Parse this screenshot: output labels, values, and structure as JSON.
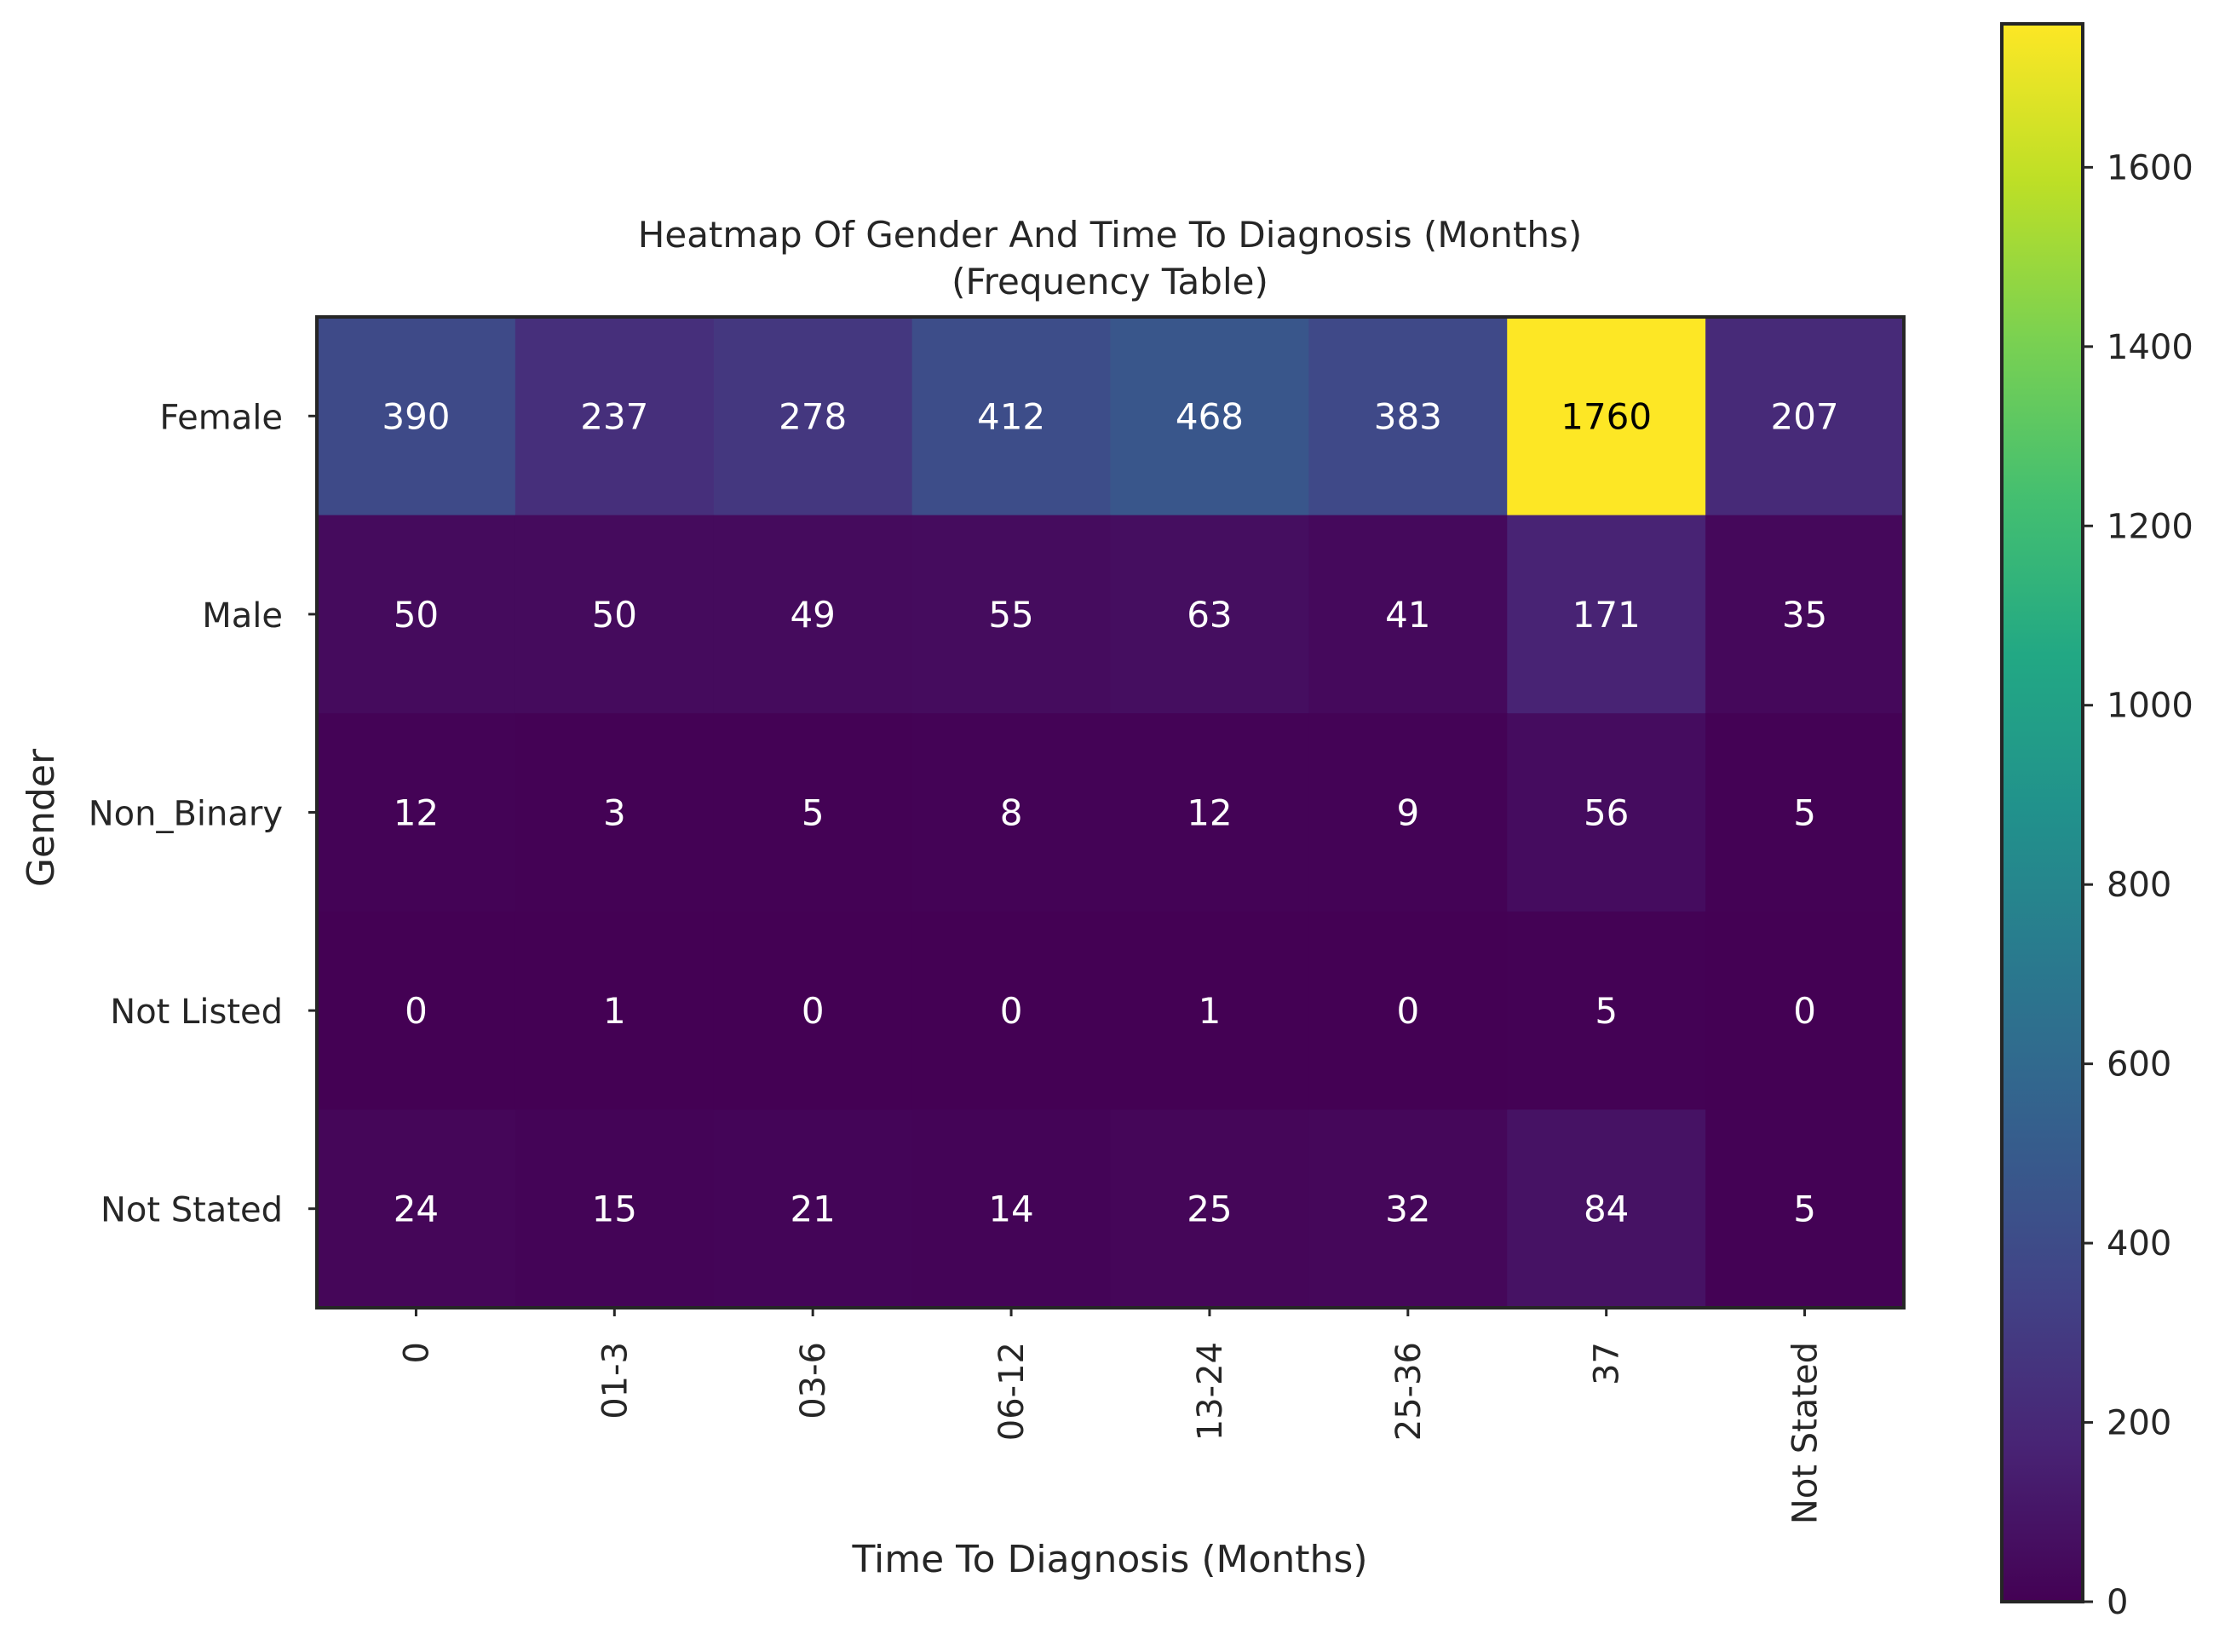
{
  "chart_data": {
    "type": "heatmap",
    "title": "Heatmap Of Gender And Time To Diagnosis (Months)",
    "subtitle": "(Frequency Table)",
    "xlabel": "Time To Diagnosis (Months)",
    "ylabel": "Gender",
    "x_categories": [
      "0",
      "01-3",
      "03-6",
      "06-12",
      "13-24",
      "25-36",
      "37",
      "Not Stated"
    ],
    "y_categories": [
      "Female",
      "Male",
      "Non_Binary",
      "Not Listed",
      "Not Stated"
    ],
    "values": [
      [
        390,
        237,
        278,
        412,
        468,
        383,
        1760,
        207
      ],
      [
        50,
        50,
        49,
        55,
        63,
        41,
        171,
        35
      ],
      [
        12,
        3,
        5,
        8,
        12,
        9,
        56,
        5
      ],
      [
        0,
        1,
        0,
        0,
        1,
        0,
        5,
        0
      ],
      [
        24,
        15,
        21,
        14,
        25,
        32,
        84,
        5
      ]
    ],
    "colormap": "viridis",
    "value_range": [
      0,
      1760
    ],
    "colorbar_ticks": [
      0,
      200,
      400,
      600,
      800,
      1000,
      1200,
      1400,
      1600
    ],
    "colorbar_position": "right",
    "annotation_colors": {
      "dark_background": "#ffffff",
      "light_background": "#000000"
    },
    "grid": false
  }
}
